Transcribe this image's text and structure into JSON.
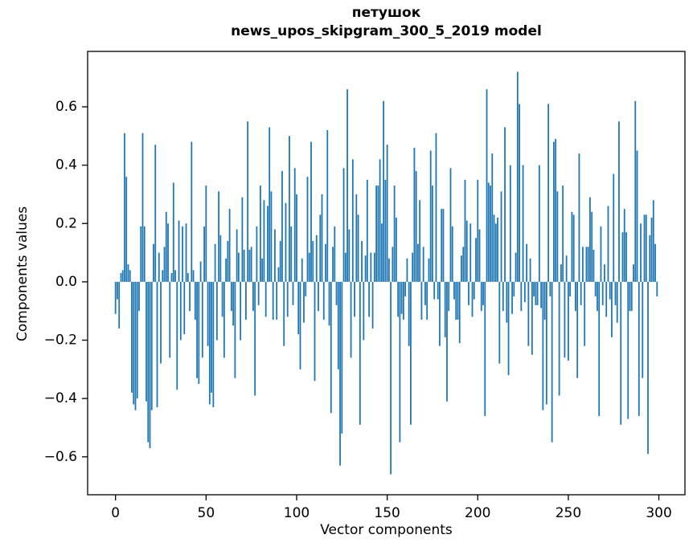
{
  "figure": {
    "background": "#ffffff"
  },
  "chart_data": {
    "type": "bar",
    "title_line1": "петушок",
    "title_line2": "news_upos_skipgram_300_5_2019 model",
    "xlabel": "Vector components",
    "ylabel": "Components values",
    "bar_color": "#1f77b4",
    "axis_color": "#000000",
    "n_components": 300,
    "xlim": [
      -15.4,
      314.4
    ],
    "ylim": [
      -0.73,
      0.79
    ],
    "xtick_values": [
      0,
      50,
      100,
      150,
      200,
      250,
      300
    ],
    "xtick_labels": [
      "0",
      "50",
      "100",
      "150",
      "200",
      "250",
      "300"
    ],
    "ytick_values": [
      0.6,
      0.4,
      0.2,
      0.0,
      -0.2,
      -0.4,
      -0.6
    ],
    "ytick_labels": [
      "0.6",
      "0.4",
      "0.2",
      "0.0",
      "−0.2",
      "−0.4",
      "−0.6"
    ],
    "grid": false,
    "legend": null,
    "bar_width_units": 0.8,
    "values": [
      -0.11,
      -0.06,
      -0.16,
      0.03,
      0.04,
      0.51,
      0.36,
      0.06,
      0.04,
      -0.38,
      -0.42,
      -0.44,
      -0.4,
      -0.1,
      0.19,
      0.51,
      0.19,
      -0.41,
      -0.55,
      -0.57,
      -0.44,
      0.13,
      0.47,
      -0.43,
      0.1,
      -0.28,
      0.04,
      0.12,
      0.24,
      0.2,
      -0.26,
      0.03,
      0.34,
      0.04,
      -0.37,
      0.21,
      -0.2,
      0.19,
      -0.18,
      0.2,
      0.03,
      -0.1,
      0.48,
      0.04,
      -0.13,
      -0.33,
      -0.35,
      0.07,
      -0.26,
      0.19,
      0.33,
      -0.22,
      -0.42,
      -0.38,
      -0.43,
      0.13,
      -0.2,
      0.31,
      0.16,
      -0.12,
      -0.26,
      0.08,
      0.14,
      0.25,
      -0.1,
      -0.15,
      -0.33,
      0.18,
      0.1,
      -0.2,
      0.29,
      0.11,
      -0.13,
      0.55,
      0.11,
      0.12,
      -0.1,
      -0.39,
      0.19,
      -0.08,
      0.33,
      0.08,
      0.28,
      -0.12,
      0.26,
      0.53,
      0.31,
      -0.13,
      0.18,
      -0.13,
      0.05,
      0.14,
      0.38,
      -0.22,
      0.27,
      -0.12,
      0.5,
      0.19,
      -0.08,
      0.39,
      0.3,
      -0.18,
      -0.3,
      0.08,
      -0.14,
      -0.05,
      0.36,
      0.1,
      0.48,
      0.14,
      -0.34,
      0.16,
      -0.1,
      0.23,
      0.3,
      -0.13,
      0.13,
      0.52,
      -0.15,
      -0.45,
      0.12,
      0.19,
      -0.08,
      -0.3,
      -0.63,
      -0.52,
      0.39,
      0.1,
      0.66,
      0.18,
      -0.26,
      0.42,
      -0.12,
      0.3,
      0.23,
      -0.49,
      0.14,
      -0.2,
      0.09,
      0.35,
      -0.12,
      0.1,
      -0.16,
      0.1,
      0.33,
      0.33,
      0.42,
      0.2,
      0.62,
      0.35,
      0.47,
      0.08,
      -0.66,
      0.12,
      0.33,
      0.22,
      -0.12,
      -0.55,
      -0.11,
      -0.13,
      -0.05,
      0.08,
      -0.22,
      -0.49,
      0.1,
      0.46,
      0.38,
      0.13,
      0.28,
      -0.13,
      0.12,
      -0.08,
      -0.13,
      0.08,
      0.45,
      0.33,
      -0.06,
      0.51,
      -0.06,
      -0.22,
      0.25,
      0.25,
      -0.19,
      -0.41,
      -0.1,
      0.39,
      0.19,
      -0.06,
      -0.13,
      -0.13,
      -0.21,
      0.09,
      0.12,
      0.35,
      0.21,
      -0.08,
      0.2,
      -0.12,
      -0.06,
      0.15,
      0.35,
      0.18,
      -0.1,
      -0.08,
      -0.46,
      0.66,
      0.34,
      0.33,
      0.44,
      0.23,
      0.2,
      0.22,
      -0.28,
      0.31,
      -0.1,
      0.53,
      -0.14,
      -0.32,
      0.4,
      -0.11,
      -0.05,
      0.1,
      0.72,
      0.61,
      -0.1,
      0.4,
      -0.07,
      0.13,
      -0.22,
      0.08,
      -0.25,
      -0.05,
      -0.08,
      -0.08,
      0.4,
      -0.09,
      -0.44,
      -0.13,
      -0.42,
      0.61,
      -0.05,
      -0.55,
      0.48,
      0.49,
      0.31,
      -0.39,
      0.06,
      0.33,
      -0.26,
      0.09,
      -0.27,
      -0.05,
      0.24,
      0.23,
      -0.1,
      -0.33,
      0.44,
      -0.08,
      0.12,
      -0.22,
      0.12,
      0.12,
      0.29,
      0.24,
      0.11,
      -0.05,
      -0.1,
      -0.46,
      0.19,
      -0.08,
      0.06,
      -0.12,
      0.26,
      -0.06,
      -0.19,
      0.37,
      -0.08,
      -0.14,
      0.55,
      -0.49,
      0.17,
      0.25,
      0.17,
      -0.47,
      -0.1,
      -0.1,
      0.06,
      0.62,
      0.45,
      -0.46,
      0.2,
      -0.33,
      0.23,
      0.23,
      -0.59,
      0.16,
      0.22,
      0.28,
      0.13,
      -0.05
    ]
  }
}
